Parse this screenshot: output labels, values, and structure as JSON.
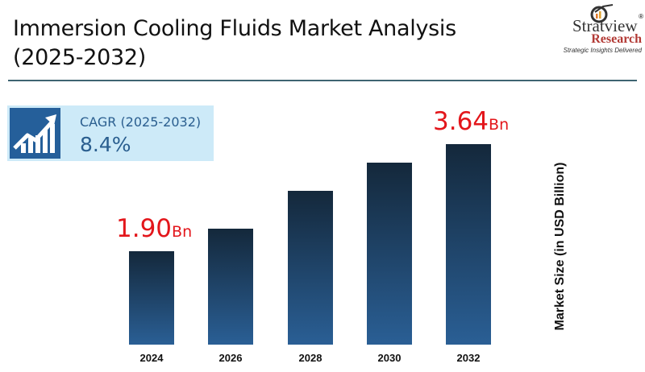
{
  "header": {
    "title_line1": "Immersion Cooling Fluids Market Analysis",
    "title_line2": "(2025-2032)"
  },
  "logo": {
    "name": "Stratview",
    "reg": "®",
    "sub": "Research",
    "tagline": "Strategic Insights Delivered"
  },
  "cagr": {
    "label": "CAGR (2025-2032)",
    "value": "8.4%",
    "icon": "growth-chart-icon"
  },
  "chart_data": {
    "type": "bar",
    "categories": [
      "2024",
      "2026",
      "2028",
      "2030",
      "2032"
    ],
    "values": [
      1.9,
      2.27,
      2.88,
      3.34,
      3.64
    ],
    "ylabel": "Market Size (in USD Billion)",
    "data_labels": [
      {
        "index": 0,
        "value": "1.90",
        "unit": "Bn"
      },
      {
        "index": 4,
        "value": "3.64",
        "unit": "Bn"
      }
    ],
    "colors": {
      "bar_top": "#14283b",
      "bar_bottom": "#2a5f95",
      "label": "#e3161b"
    },
    "grid": false
  }
}
